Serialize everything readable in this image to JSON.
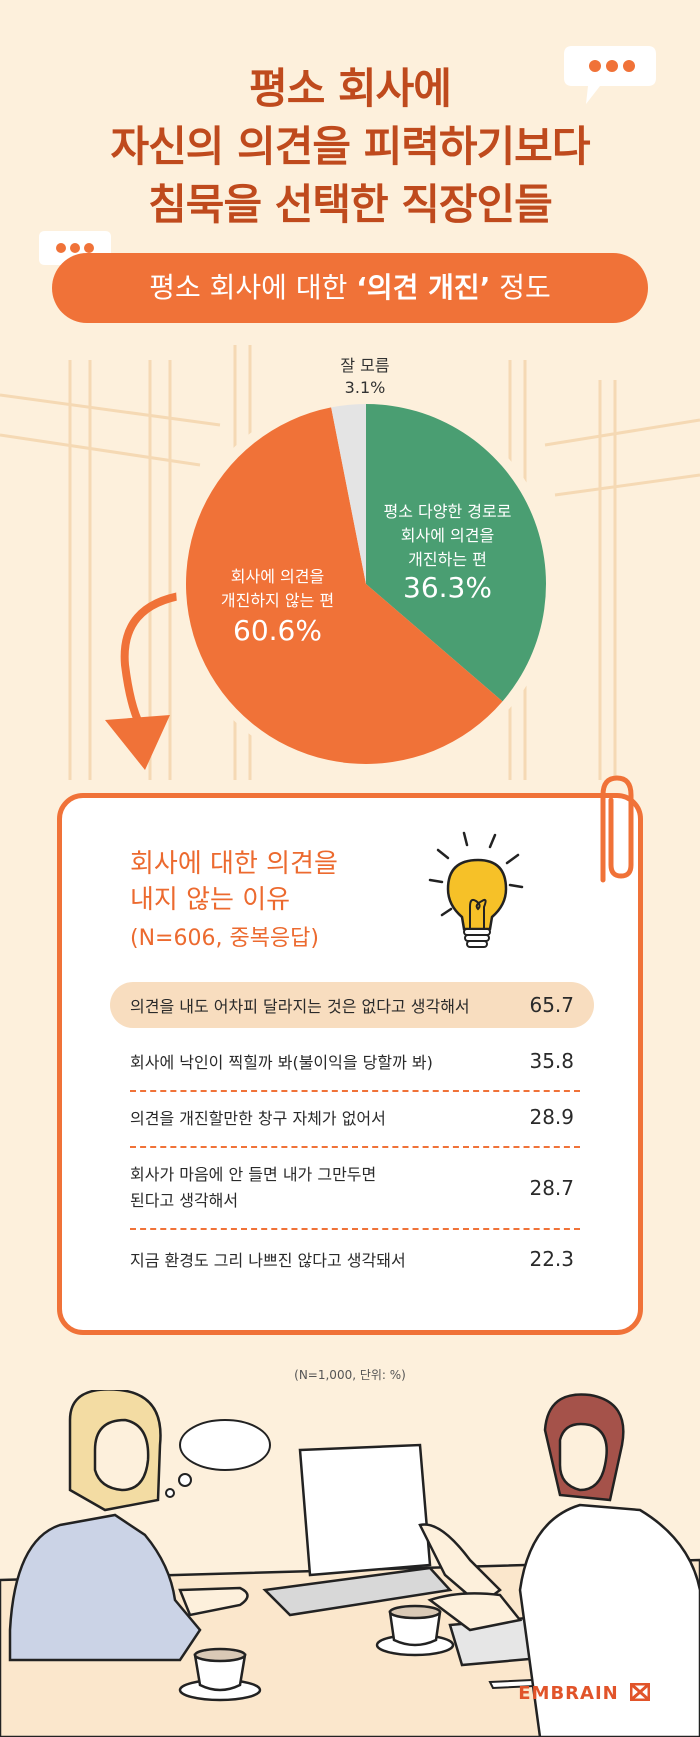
{
  "title": {
    "line1": "평소 회사에",
    "line2": "자신의 의견을 피력하기보다",
    "line3": "침묵을 선택한 직장인들"
  },
  "subtitle": {
    "pre": "평소 회사에 대한 ",
    "bold": "‘의견 개진’",
    "post": " 정도"
  },
  "chart_data": [
    {
      "type": "pie",
      "title": "평소 회사에 대한 ‘의견 개진’ 정도",
      "slices": [
        {
          "label": "평소 다양한 경로로 회사에 의견을 개진하는 편",
          "value": 36.3,
          "color": "#4a9e72"
        },
        {
          "label": "회사에 의견을 개진하지 않는 편",
          "value": 60.6,
          "color": "#f07238"
        },
        {
          "label": "잘 모름",
          "value": 3.1,
          "color": "#e4e4e4"
        }
      ],
      "display": {
        "green_line1": "평소 다양한 경로로",
        "green_line2": "회사에 의견을",
        "green_line3": "개진하는 편",
        "green_pct": "36.3%",
        "orange_line1": "회사에 의견을",
        "orange_line2": "개진하지 않는 편",
        "orange_pct": "60.6%",
        "grey_line1": "잘 모름",
        "grey_pct": "3.1%"
      }
    },
    {
      "type": "table",
      "title": "회사에 대한 의견을 내지 않는 이유",
      "note": "(N=606, 중복응답)",
      "rows": [
        {
          "label": "의견을 내도 어차피 달라지는 것은 없다고 생각해서",
          "value": 65.7
        },
        {
          "label": "회사에 낙인이 찍힐까 봐(불이익을 당할까 봐)",
          "value": 35.8
        },
        {
          "label": "의견을 개진할만한 창구 자체가 없어서",
          "value": 28.9
        },
        {
          "label": "회사가 마음에 안 들면 내가 그만두면 된다고 생각해서",
          "value": 28.7
        },
        {
          "label": "지금 환경도 그리 나쁘진 않다고 생각돼서",
          "value": 22.3
        }
      ]
    }
  ],
  "card": {
    "title_line1": "회사에 대한 의견을",
    "title_line2": "내지 않는 이유",
    "note": "(N=606, 중복응답)",
    "row4_line1": "회사가 마음에 안 들면 내가 그만두면",
    "row4_line2": "된다고 생각해서"
  },
  "footnote": "(N=1,000, 단위: %)",
  "brand": "EMBRAIN",
  "icons": [
    "speech-bubble-icon",
    "lightbulb-icon",
    "paperclip-icon",
    "curved-arrow-icon",
    "thought-bubble-icon",
    "laptop-icon",
    "coffee-cup-icon",
    "notebook-icon",
    "pen-icon",
    "embrain-logo-icon"
  ]
}
